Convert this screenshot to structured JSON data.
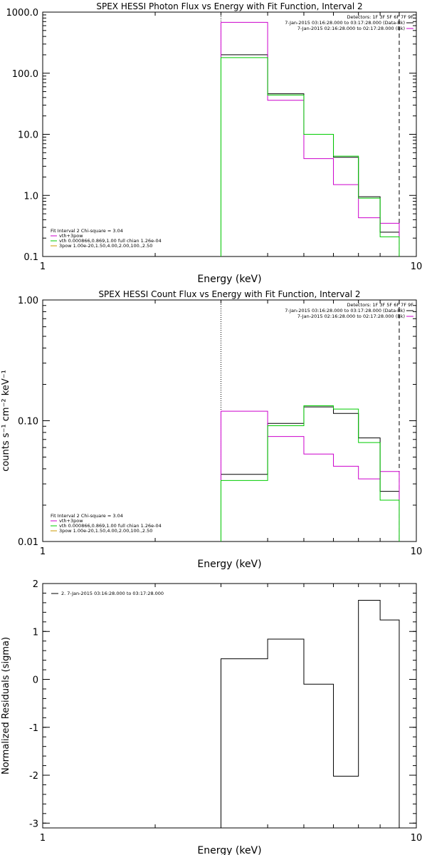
{
  "chart_data": [
    {
      "type": "histogram-step",
      "title": "SPEX HESSI Photon Flux vs Energy with Fit Function, Interval 2",
      "xlabel": "Energy (keV)",
      "ylabel": "",
      "xscale": "log",
      "yscale": "log",
      "xlim": [
        1,
        10
      ],
      "ylim": [
        0.1,
        1000
      ],
      "xticks": [
        "1",
        "10"
      ],
      "yticks": [
        "0.1",
        "1.0",
        "10.0",
        "100.0",
        "1000.0"
      ],
      "bin_edges": [
        3,
        4,
        5,
        6,
        7,
        8,
        9
      ],
      "series": [
        {
          "name": "",
          "color": "#000000",
          "values": [
            200,
            46,
            10,
            4.2,
            0.95,
            0.25
          ]
        },
        {
          "name": "",
          "color": "#cc00cc",
          "values": [
            680,
            36,
            4.0,
            1.5,
            0.43,
            0.35
          ]
        },
        {
          "name": "",
          "color": "#00cc00",
          "values": [
            180,
            44,
            10,
            4.4,
            0.9,
            0.21
          ]
        }
      ],
      "vlines": [
        {
          "x": 3,
          "style": "dotted"
        },
        {
          "x": 9,
          "style": "dashed"
        }
      ],
      "legend_top_right": {
        "line1": "Detectors: 1F 3F 5F 6F 7F 9F",
        "entries": [
          {
            "label": "7-Jan-2015 03:16:28.000 to 03:17:28.000 (Data-Bk)",
            "color": "#000000"
          },
          {
            "label": "7-Jan-2015 02:16:28.000 to 02:17:28.000 (Bk)",
            "color": "#cc00cc"
          }
        ]
      },
      "legend_bottom_left": {
        "header": "Fit Interval 2   Chi-square = 3.04",
        "entries": [
          {
            "label": "vth+3pow",
            "color": "#cc00cc"
          },
          {
            "label": "vth 0.000866,0.869,1.00  full chian 1.26e-04",
            "color": "#00cc00"
          },
          {
            "label": "3pow 1.00e-20,1.50,4.00,2.00,100.,2.50",
            "color": "#cc9900"
          }
        ]
      }
    },
    {
      "type": "histogram-step",
      "title": "SPEX HESSI Count Flux vs Energy with Fit Function, Interval 2",
      "xlabel": "Energy (keV)",
      "ylabel": "counts s⁻¹ cm⁻² keV⁻¹",
      "xscale": "log",
      "yscale": "log",
      "xlim": [
        1,
        10
      ],
      "ylim": [
        0.01,
        1
      ],
      "xticks": [
        "1",
        "10"
      ],
      "yticks": [
        "0.01",
        "0.10",
        "1.00"
      ],
      "bin_edges": [
        3,
        4,
        5,
        6,
        7,
        8,
        9
      ],
      "series": [
        {
          "name": "",
          "color": "#000000",
          "values": [
            0.036,
            0.095,
            0.13,
            0.115,
            0.072,
            0.026
          ]
        },
        {
          "name": "",
          "color": "#cc00cc",
          "values": [
            0.12,
            0.074,
            0.053,
            0.042,
            0.033,
            0.038
          ]
        },
        {
          "name": "",
          "color": "#00cc00",
          "values": [
            0.032,
            0.091,
            0.133,
            0.125,
            0.066,
            0.022
          ]
        }
      ],
      "vlines": [
        {
          "x": 3,
          "style": "dotted"
        },
        {
          "x": 9,
          "style": "dashed"
        }
      ],
      "legend_top_right": {
        "line1": "Detectors: 1F 3F 5F 6F 7F 9F",
        "entries": [
          {
            "label": "7-Jan-2015 03:16:28.000 to 03:17:28.000 (Data-Bk)",
            "color": "#000000"
          },
          {
            "label": "7-Jan-2015 02:16:28.000 to 02:17:28.000 (Bk)",
            "color": "#cc00cc"
          }
        ]
      },
      "legend_bottom_left": {
        "header": "Fit Interval 2   Chi-square = 3.04",
        "entries": [
          {
            "label": "vth+3pow",
            "color": "#cc00cc"
          },
          {
            "label": "vth 0.000866,0.869,1.00  full chian 1.26e-04",
            "color": "#00cc00"
          },
          {
            "label": "3pow 1.00e-20,1.50,4.00,2.00,100.,2.50",
            "color": "#cc9900"
          }
        ]
      }
    },
    {
      "type": "histogram-step",
      "title": "",
      "xlabel": "Energy (keV)",
      "ylabel": "Normalized Residuals (sigma)",
      "xscale": "log",
      "yscale": "linear",
      "xlim": [
        1,
        10
      ],
      "ylim": [
        -3.1,
        2
      ],
      "xticks": [
        "1",
        "10"
      ],
      "yticks": [
        "-3",
        "-2",
        "-1",
        "0",
        "1",
        "2"
      ],
      "bin_edges": [
        3,
        4,
        5,
        6,
        7,
        8,
        9
      ],
      "series": [
        {
          "name": "",
          "color": "#000000",
          "values": [
            0.43,
            0.84,
            -0.1,
            -2.02,
            1.65,
            1.24
          ]
        }
      ],
      "legend_top_left": {
        "entries": [
          {
            "label": "2.  7-Jan-2015 03:16:28.000 to 03:17:28.000",
            "color": "#000000"
          }
        ]
      }
    }
  ]
}
